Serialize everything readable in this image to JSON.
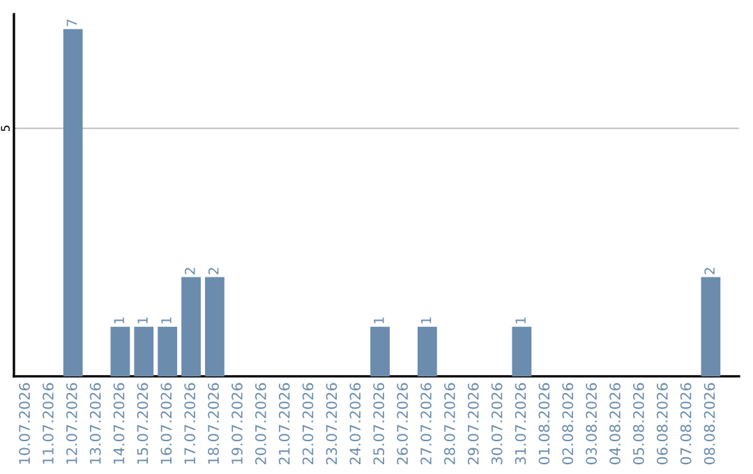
{
  "chart_data": {
    "type": "bar",
    "categories": [
      "10.07.2026",
      "11.07.2026",
      "12.07.2026",
      "13.07.2026",
      "14.07.2026",
      "15.07.2026",
      "16.07.2026",
      "17.07.2026",
      "18.07.2026",
      "19.07.2026",
      "20.07.2026",
      "21.07.2026",
      "22.07.2026",
      "23.07.2026",
      "24.07.2026",
      "25.07.2026",
      "26.07.2026",
      "27.07.2026",
      "28.07.2026",
      "29.07.2026",
      "30.07.2026",
      "31.07.2026",
      "01.08.2026",
      "02.08.2026",
      "03.08.2026",
      "04.08.2026",
      "05.08.2026",
      "06.08.2026",
      "07.08.2026",
      "08.08.2026"
    ],
    "values": [
      0,
      0,
      7,
      0,
      1,
      1,
      1,
      2,
      2,
      0,
      0,
      0,
      0,
      0,
      0,
      1,
      0,
      1,
      0,
      0,
      0,
      1,
      0,
      0,
      0,
      0,
      0,
      0,
      0,
      2
    ],
    "value_labels": [
      null,
      null,
      "7",
      null,
      "1",
      "1",
      "1",
      "2",
      "2",
      null,
      null,
      null,
      null,
      null,
      null,
      "1",
      null,
      "1",
      null,
      null,
      null,
      "1",
      null,
      null,
      null,
      null,
      null,
      null,
      null,
      "2"
    ],
    "color": "#6b8cad",
    "ylim": [
      0,
      7.3
    ],
    "yticks": [
      5
    ],
    "grid": "y"
  }
}
